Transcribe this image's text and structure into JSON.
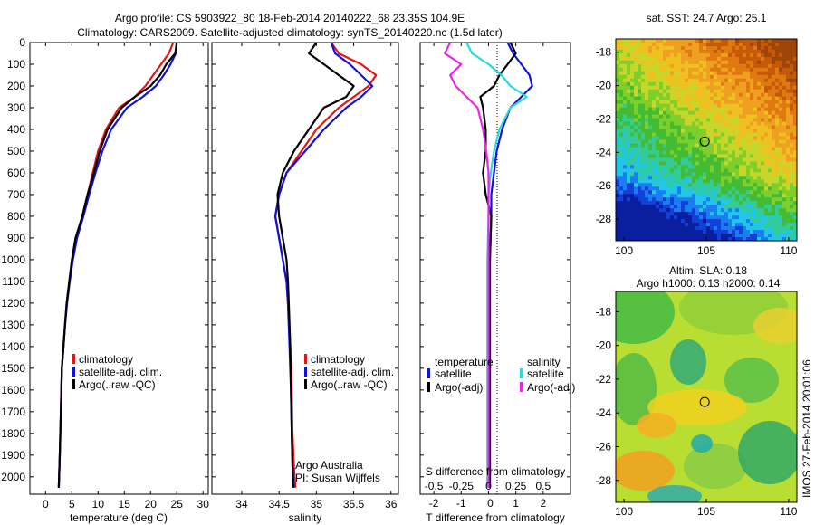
{
  "figure": {
    "title_line1": "Argo profile: CS 5903922_80 18-Feb-2014 20140222_68 23.35S 104.9E",
    "title_line2": "Climatology: CARS2009. Satellite-adjusted climatology: synTS_20140220.nc (1.5d later)",
    "footer_stamp": "IMOS 27-Feb-2014 20:01:06",
    "argo_credit_line1": "Argo Australia",
    "argo_credit_line2": "PI: Susan Wijffels"
  },
  "colors": {
    "climatology": "#ee1111",
    "satellite": "#1111dd",
    "argo": "#000000",
    "sat_salinity": "#22dddd",
    "argo_salinity": "#ee22ee"
  },
  "chart_data": [
    {
      "type": "line",
      "name": "temperature-profile",
      "xlabel": "temperature (deg C)",
      "ylabel": "",
      "xlim": [
        -3,
        31
      ],
      "ylim": [
        2080,
        0
      ],
      "xticks": [
        0,
        5,
        10,
        15,
        20,
        25,
        30
      ],
      "yticks": [
        0,
        100,
        200,
        300,
        400,
        500,
        600,
        700,
        800,
        900,
        1000,
        1100,
        1200,
        1300,
        1400,
        1500,
        1600,
        1700,
        1800,
        1900,
        2000
      ],
      "legend": [
        "climatology",
        "satellite-adj. clim.",
        "Argo(..raw -QC)"
      ],
      "series": [
        {
          "name": "climatology",
          "color_key": "climatology",
          "x": [
            24.3,
            23.5,
            22.0,
            20.5,
            19.0,
            17.0,
            14.0,
            11.5,
            10.0,
            9.0,
            8.0,
            7.0,
            5.8,
            5.0,
            4.5,
            4.0,
            3.7,
            3.4,
            3.1,
            2.9,
            2.7,
            2.5
          ],
          "y": [
            0,
            50,
            100,
            150,
            200,
            250,
            300,
            400,
            500,
            600,
            700,
            800,
            900,
            1000,
            1100,
            1200,
            1300,
            1400,
            1500,
            1700,
            1900,
            2050
          ]
        },
        {
          "name": "satellite-adj. clim.",
          "color_key": "satellite",
          "x": [
            25.0,
            24.8,
            23.8,
            22.5,
            21.0,
            18.5,
            15.5,
            12.5,
            10.8,
            9.5,
            8.3,
            7.2,
            6.0,
            5.2,
            4.6,
            4.1,
            3.7,
            3.4,
            3.1,
            2.9,
            2.7,
            2.5
          ],
          "y": [
            0,
            50,
            100,
            150,
            200,
            250,
            300,
            400,
            500,
            600,
            700,
            800,
            900,
            1000,
            1100,
            1200,
            1300,
            1400,
            1500,
            1700,
            1900,
            2050
          ]
        },
        {
          "name": "Argo(..raw -QC)",
          "color_key": "argo",
          "x": [
            25.0,
            24.7,
            23.0,
            21.8,
            20.0,
            17.0,
            14.5,
            11.8,
            10.3,
            9.2,
            8.0,
            7.0,
            5.7,
            5.0,
            4.5,
            4.0,
            3.7,
            3.4,
            3.1,
            2.9,
            2.7,
            2.5
          ],
          "y": [
            0,
            50,
            100,
            150,
            200,
            250,
            300,
            400,
            500,
            600,
            700,
            800,
            900,
            1000,
            1100,
            1200,
            1300,
            1400,
            1500,
            1700,
            1900,
            2050
          ]
        }
      ]
    },
    {
      "type": "line",
      "name": "salinity-profile",
      "xlabel": "salinity",
      "ylabel": "",
      "xlim": [
        33.6,
        36.1
      ],
      "ylim": [
        2080,
        0
      ],
      "xticks": [
        34,
        34.5,
        35,
        35.5,
        36
      ],
      "legend": [
        "climatology",
        "satellite-adj. clim.",
        "Argo(..raw -QC)"
      ],
      "series": [
        {
          "name": "climatology",
          "color_key": "climatology",
          "x": [
            35.2,
            35.3,
            35.6,
            35.8,
            35.7,
            35.5,
            35.3,
            35.0,
            34.8,
            34.6,
            34.5,
            34.45,
            34.5,
            34.55,
            34.6,
            34.62,
            34.65,
            34.67,
            34.68,
            34.7,
            34.72
          ],
          "y": [
            0,
            50,
            100,
            150,
            200,
            250,
            300,
            400,
            500,
            600,
            700,
            800,
            900,
            1000,
            1100,
            1200,
            1400,
            1600,
            1800,
            1950,
            2050
          ]
        },
        {
          "name": "satellite-adj. clim.",
          "color_key": "satellite",
          "x": [
            35.2,
            35.25,
            35.45,
            35.6,
            35.75,
            35.6,
            35.4,
            35.1,
            34.85,
            34.6,
            34.5,
            34.45,
            34.5,
            34.55,
            34.6,
            34.62,
            34.64,
            34.66,
            34.67,
            34.68,
            34.7
          ],
          "y": [
            0,
            50,
            100,
            150,
            200,
            250,
            300,
            400,
            500,
            600,
            700,
            800,
            900,
            1000,
            1100,
            1200,
            1400,
            1600,
            1800,
            1950,
            2050
          ]
        },
        {
          "name": "Argo(..raw -QC)",
          "color_key": "argo",
          "x": [
            35.0,
            34.9,
            35.1,
            35.3,
            35.5,
            35.4,
            35.1,
            34.9,
            34.7,
            34.55,
            34.48,
            34.5,
            34.55,
            34.6,
            34.62,
            34.63,
            34.65,
            34.66,
            34.67,
            34.68,
            34.69
          ],
          "y": [
            0,
            50,
            100,
            150,
            200,
            250,
            300,
            400,
            500,
            600,
            700,
            800,
            900,
            1000,
            1100,
            1200,
            1400,
            1600,
            1800,
            1950,
            2050
          ]
        }
      ]
    },
    {
      "type": "line",
      "name": "difference-profile",
      "xlabel": "T difference from climatology",
      "xlabel_top": "S difference from climatology",
      "xlim": [
        -2.5,
        3
      ],
      "ylim": [
        2080,
        0
      ],
      "xticks": [
        -2,
        -1,
        0,
        1,
        2
      ],
      "xticks_s": [
        "-0.5",
        "-0.25",
        "0",
        "0.25",
        "0.5"
      ],
      "legend_temperature_title": "temperature",
      "legend_salinity_title": "salinity",
      "legend": [
        "satellite",
        "Argo(-adj)",
        "satellite",
        "Argo(-adj)"
      ],
      "series": [
        {
          "name": "T satellite",
          "color_key": "satellite",
          "x": [
            0.7,
            0.9,
            1.2,
            1.5,
            1.6,
            1.2,
            0.8,
            0.5,
            0.3,
            0.2,
            0.1,
            0.1,
            0.05,
            0.05,
            0.05,
            0.05,
            0.05,
            0.05
          ],
          "y": [
            0,
            50,
            100,
            150,
            200,
            250,
            300,
            400,
            500,
            600,
            700,
            800,
            1000,
            1200,
            1500,
            1800,
            2000,
            2050
          ]
        },
        {
          "name": "T Argo(-adj)",
          "color_key": "argo",
          "x": [
            0.8,
            1.0,
            0.7,
            0.4,
            0.2,
            -0.3,
            -0.2,
            -0.1,
            -0.1,
            -0.2,
            -0.1,
            0.1,
            0.05,
            0.05,
            0.05,
            0.05,
            0.05,
            0.05
          ],
          "y": [
            0,
            50,
            100,
            150,
            200,
            250,
            300,
            400,
            500,
            600,
            700,
            800,
            1000,
            1200,
            1500,
            1800,
            2000,
            2050
          ]
        },
        {
          "name": "S satellite",
          "color_key": "sat_salinity",
          "x": [
            -0.2,
            -0.15,
            0.0,
            0.12,
            0.2,
            0.35,
            0.2,
            0.1,
            0.05,
            0.02,
            0.0,
            0.0,
            -0.01,
            -0.01,
            -0.01,
            -0.01,
            -0.01,
            -0.01
          ],
          "y": [
            0,
            50,
            100,
            150,
            200,
            250,
            300,
            400,
            500,
            600,
            700,
            800,
            1000,
            1200,
            1500,
            1800,
            2000,
            2050
          ]
        },
        {
          "name": "S Argo(-adj)",
          "color_key": "argo_salinity",
          "x": [
            -0.35,
            -0.4,
            -0.25,
            -0.35,
            -0.3,
            -0.2,
            -0.1,
            -0.05,
            -0.02,
            0.0,
            0.0,
            0.0,
            0.0,
            0.0,
            0.0,
            0.0,
            0.0,
            0.0
          ],
          "y": [
            0,
            50,
            100,
            150,
            200,
            250,
            300,
            400,
            500,
            600,
            700,
            800,
            1000,
            1200,
            1500,
            1800,
            2000,
            2050
          ]
        }
      ]
    },
    {
      "type": "heatmap",
      "name": "sst-map",
      "title": "sat. SST: 24.7  Argo: 25.1",
      "xlim": [
        99.5,
        110.5
      ],
      "ylim": [
        -29.3,
        -17.2
      ],
      "xticks": [
        100,
        105,
        110
      ],
      "yticks": [
        -18,
        -20,
        -22,
        -24,
        -26,
        -28
      ],
      "marker": {
        "lon": 104.9,
        "lat": -23.35
      }
    },
    {
      "type": "heatmap",
      "name": "sla-map",
      "title_line1": "Altim. SLA: 0.18",
      "title_line2": "Argo h1000: 0.13  h2000: 0.14",
      "xlim": [
        99.5,
        110.5
      ],
      "ylim": [
        -29.3,
        -16.8
      ],
      "xticks": [
        100,
        105,
        110
      ],
      "yticks": [
        -18,
        -20,
        -22,
        -24,
        -26,
        -28
      ],
      "marker": {
        "lon": 104.9,
        "lat": -23.35
      }
    }
  ]
}
